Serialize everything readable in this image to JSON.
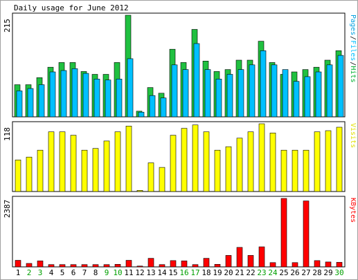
{
  "chart_data": {
    "type": "bar",
    "title": "Daily usage for June 2012",
    "days": [
      "1",
      "2",
      "3",
      "4",
      "5",
      "6",
      "7",
      "8",
      "9",
      "10",
      "11",
      "12",
      "13",
      "14",
      "15",
      "16",
      "17",
      "18",
      "19",
      "20",
      "21",
      "22",
      "23",
      "24",
      "25",
      "26",
      "27",
      "28",
      "29",
      "30"
    ],
    "weekend_days": [
      "2",
      "3",
      "9",
      "10",
      "16",
      "17",
      "23",
      "24",
      "30"
    ],
    "panels": {
      "top": {
        "ymax_label": "215",
        "ymax": 215,
        "labels": [
          {
            "text": "Pages",
            "color": "#00a0e0",
            "sep_after": "/"
          },
          {
            "text": "Files",
            "color": "#00c0ff",
            "sep_after": "/"
          },
          {
            "text": "Hits",
            "color": "#00b030",
            "sep_after": ""
          }
        ],
        "series": [
          {
            "name": "Hits",
            "color": "#20c040",
            "values": [
              68,
              68,
              83,
              105,
              115,
              115,
              96,
              90,
              90,
              115,
              215,
              12,
              62,
              50,
              143,
              115,
              185,
              118,
              96,
              100,
              120,
              120,
              160,
              115,
              90,
              95,
              100,
              105,
              120,
              140
            ]
          },
          {
            "name": "Files",
            "color": "#00c0ff",
            "values": [
              55,
              60,
              68,
              95,
              98,
              102,
              92,
              80,
              78,
              80,
              123,
              10,
              45,
              40,
              110,
              100,
              155,
              100,
              80,
              90,
              100,
              110,
              140,
              110,
              100,
              75,
              85,
              95,
              110,
              130
            ]
          },
          {
            "name": "Pages",
            "color": "#0080c0",
            "values": [
              0,
              0,
              0,
              0,
              0,
              0,
              0,
              0,
              0,
              0,
              0,
              0,
              0,
              0,
              0,
              0,
              0,
              0,
              0,
              0,
              0,
              0,
              0,
              0,
              0,
              0,
              0,
              0,
              0,
              0
            ]
          }
        ]
      },
      "middle": {
        "ymax_label": "118",
        "ymax": 118,
        "labels": [
          {
            "text": "Visits",
            "color": "#e0e000",
            "sep_after": ""
          }
        ],
        "series": [
          {
            "name": "Visits",
            "color": "#ffff00",
            "values": [
              55,
              60,
              72,
              104,
              104,
              98,
              72,
              75,
              88,
              104,
              114,
              2,
              50,
              42,
              98,
              110,
              116,
              104,
              72,
              78,
              93,
              104,
              118,
              102,
              72,
              72,
              72,
              104,
              106,
              112
            ]
          }
        ]
      },
      "bottom": {
        "ymax_label": "2387",
        "ymax": 2387,
        "labels": [
          {
            "text": "KBytes",
            "color": "#ff0000",
            "sep_after": ""
          }
        ],
        "series": [
          {
            "name": "KBytes",
            "color": "#ff0000",
            "values": [
              230,
              120,
              210,
              80,
              80,
              80,
              80,
              80,
              80,
              90,
              230,
              30,
              300,
              80,
              220,
              210,
              80,
              300,
              90,
              400,
              680,
              400,
              700,
              150,
              2387,
              150,
              2300,
              220,
              170,
              160
            ]
          }
        ]
      }
    }
  }
}
